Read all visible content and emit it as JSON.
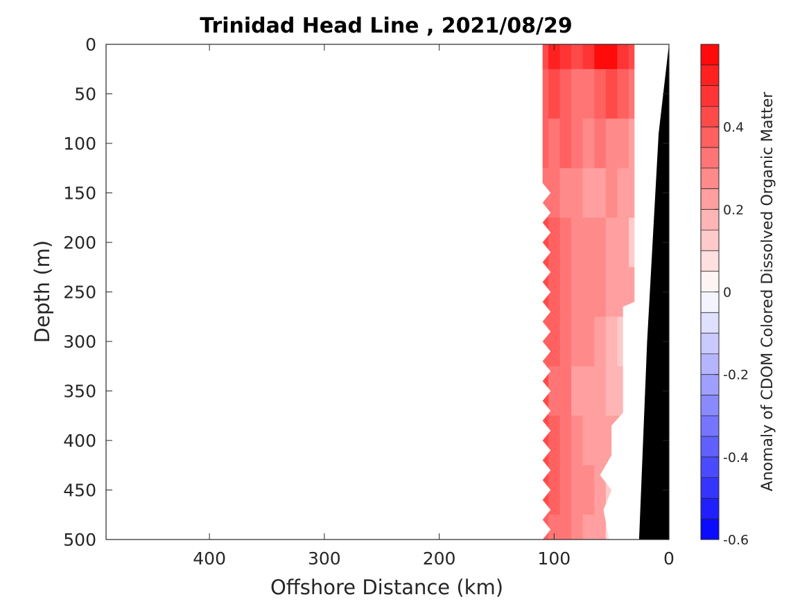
{
  "chart_data": {
    "type": "heatmap",
    "title": "Trinidad Head Line , 2021/08/29",
    "xlabel": "Offshore Distance (km)",
    "ylabel": "Depth (m)",
    "xlim": [
      490,
      0
    ],
    "ylim": [
      500,
      0
    ],
    "x_reversed": true,
    "y_reversed": true,
    "x_ticks": [
      "400",
      "300",
      "200",
      "100",
      "0"
    ],
    "x_tick_values": [
      400,
      300,
      200,
      100,
      0
    ],
    "y_ticks": [
      "0",
      "50",
      "100",
      "150",
      "200",
      "250",
      "300",
      "350",
      "400",
      "450",
      "500"
    ],
    "y_tick_values": [
      0,
      50,
      100,
      150,
      200,
      250,
      300,
      350,
      400,
      450,
      500
    ],
    "colorbar": {
      "label": "Anomaly of CDOM Colored Dissolved Organic Matter",
      "range": [
        -0.6,
        0.6
      ],
      "levels": 24,
      "ticks": [
        "-0.6",
        "-0.4",
        "-0.2",
        "0",
        "0.2",
        "0.4"
      ],
      "tick_values": [
        -0.6,
        -0.4,
        -0.2,
        0,
        0.2,
        0.4
      ],
      "colormap": "blue-white-red",
      "low_color": "#0000ff",
      "mid_color": "#ffffff",
      "high_color": "#ff0000"
    },
    "data_columns_km": [
      110,
      100,
      90,
      80,
      70,
      60,
      50,
      40,
      30
    ],
    "data_depths_m": [
      0,
      50,
      100,
      150,
      200,
      250,
      300,
      350,
      400,
      450,
      500
    ],
    "anomaly": [
      [
        0.42,
        0.52,
        0.45,
        0.4,
        0.48,
        0.55,
        0.55,
        0.48,
        0.4
      ],
      [
        0.35,
        0.42,
        0.38,
        0.3,
        0.32,
        0.38,
        0.42,
        0.36,
        0.3
      ],
      [
        0.38,
        0.33,
        0.36,
        0.3,
        0.26,
        0.3,
        0.28,
        0.26,
        0.24
      ],
      [
        0.32,
        0.3,
        0.28,
        0.25,
        0.22,
        0.24,
        0.26,
        0.22,
        0.2
      ],
      [
        0.4,
        0.36,
        0.3,
        0.28,
        0.26,
        0.25,
        0.24,
        0.22,
        0.14
      ],
      [
        0.42,
        0.38,
        0.32,
        0.28,
        0.28,
        0.26,
        0.24,
        0.2,
        null
      ],
      [
        0.38,
        0.36,
        0.3,
        0.26,
        0.26,
        0.24,
        0.18,
        0.14,
        null
      ],
      [
        0.4,
        0.34,
        0.3,
        0.24,
        0.22,
        0.22,
        0.18,
        null,
        null
      ],
      [
        0.42,
        0.38,
        0.32,
        0.28,
        0.24,
        0.22,
        null,
        null,
        null
      ],
      [
        0.4,
        0.36,
        0.3,
        0.28,
        0.26,
        0.22,
        0.12,
        null,
        null
      ],
      [
        0.36,
        0.34,
        0.3,
        0.26,
        0.24,
        0.2,
        0.08,
        null,
        null
      ]
    ],
    "bathymetry_km_by_depth": [
      {
        "depth": 0,
        "km": 0
      },
      {
        "depth": 90,
        "km": 9
      },
      {
        "depth": 300,
        "km": 19
      },
      {
        "depth": 500,
        "km": 26
      }
    ],
    "bathymetry_color": "#000000",
    "grid": false
  }
}
